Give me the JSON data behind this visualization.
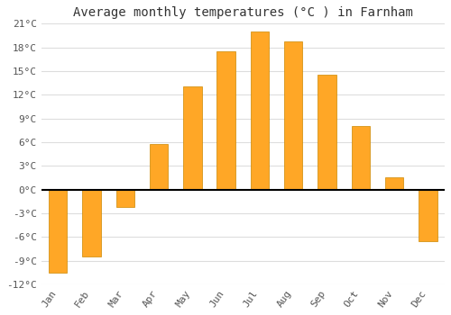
{
  "title": "Average monthly temperatures (°C ) in Farnham",
  "months": [
    "Jan",
    "Feb",
    "Mar",
    "Apr",
    "May",
    "Jun",
    "Jul",
    "Aug",
    "Sep",
    "Oct",
    "Nov",
    "Dec"
  ],
  "values": [
    -10.5,
    -8.5,
    -2.2,
    5.8,
    13.0,
    17.5,
    20.0,
    18.7,
    14.5,
    8.0,
    1.5,
    -6.5
  ],
  "bar_color_top": "#FFB300",
  "bar_color_bottom": "#FFA500",
  "bar_edge_color": "#CC8800",
  "ylim": [
    -12,
    21
  ],
  "yticks": [
    -12,
    -9,
    -6,
    -3,
    0,
    3,
    6,
    9,
    12,
    15,
    18,
    21
  ],
  "ytick_labels": [
    "-12°C",
    "-9°C",
    "-6°C",
    "-3°C",
    "0°C",
    "3°C",
    "6°C",
    "9°C",
    "12°C",
    "15°C",
    "18°C",
    "21°C"
  ],
  "plot_bg_color": "#ffffff",
  "fig_bg_color": "#ffffff",
  "grid_color": "#dddddd",
  "zero_line_color": "#000000",
  "title_fontsize": 10,
  "tick_fontsize": 8,
  "bar_width": 0.55
}
